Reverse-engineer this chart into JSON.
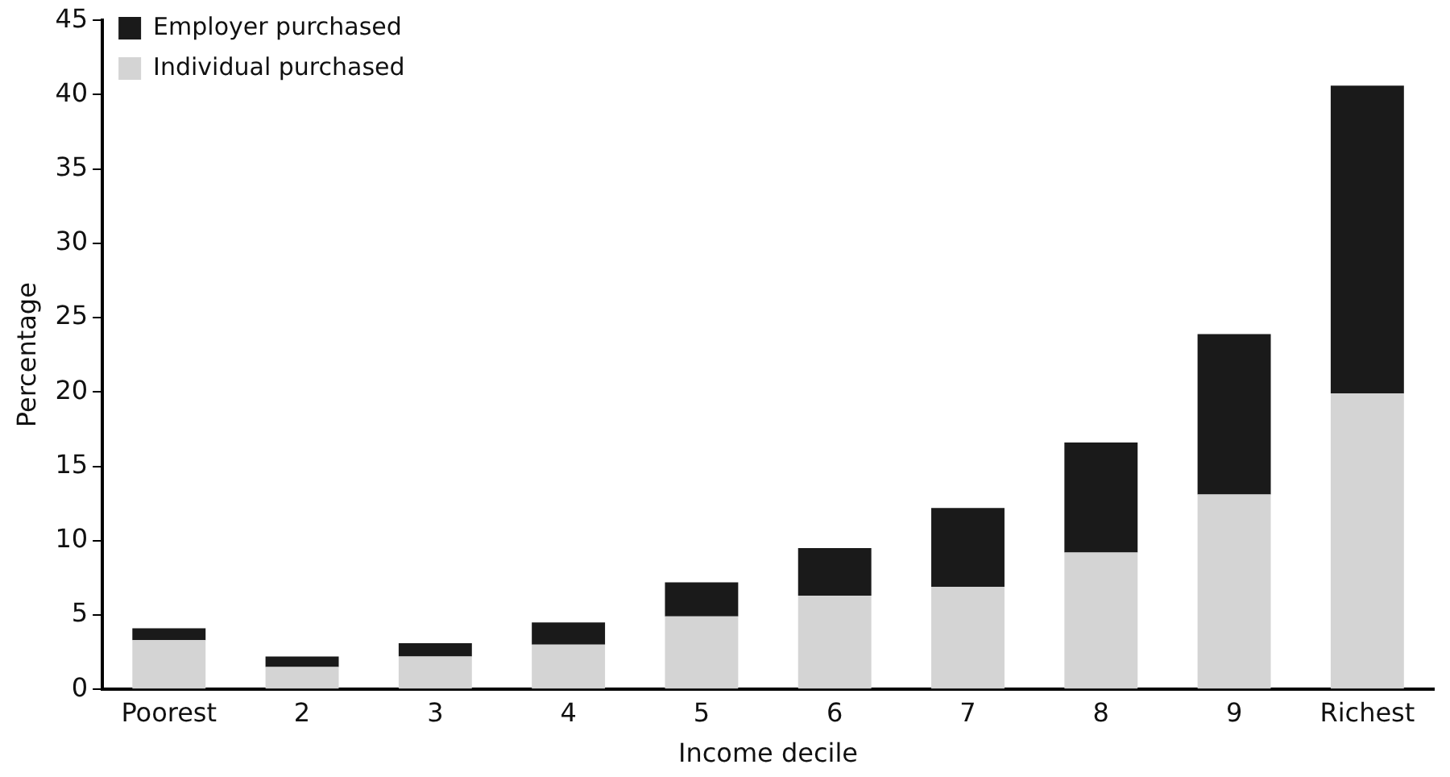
{
  "chart_data": {
    "type": "bar",
    "stacked": true,
    "xlabel": "Income decile",
    "ylabel": "Percentage",
    "categories": [
      "Poorest",
      "2",
      "3",
      "4",
      "5",
      "6",
      "7",
      "8",
      "9",
      "Richest"
    ],
    "series": [
      {
        "name": "Individual purchased",
        "color": "#d4d4d4",
        "values": [
          3.3,
          1.5,
          2.2,
          3.0,
          4.9,
          6.3,
          6.9,
          9.2,
          13.1,
          19.9
        ]
      },
      {
        "name": "Employer purchased",
        "color": "#1a1a1a",
        "values": [
          0.8,
          0.7,
          0.9,
          1.5,
          2.3,
          3.2,
          5.3,
          7.4,
          10.8,
          20.7
        ]
      }
    ],
    "ylim": [
      0,
      45
    ],
    "yticks": [
      0,
      5,
      10,
      15,
      20,
      25,
      30,
      35,
      40,
      45
    ],
    "grid": false,
    "legend": "top left"
  }
}
